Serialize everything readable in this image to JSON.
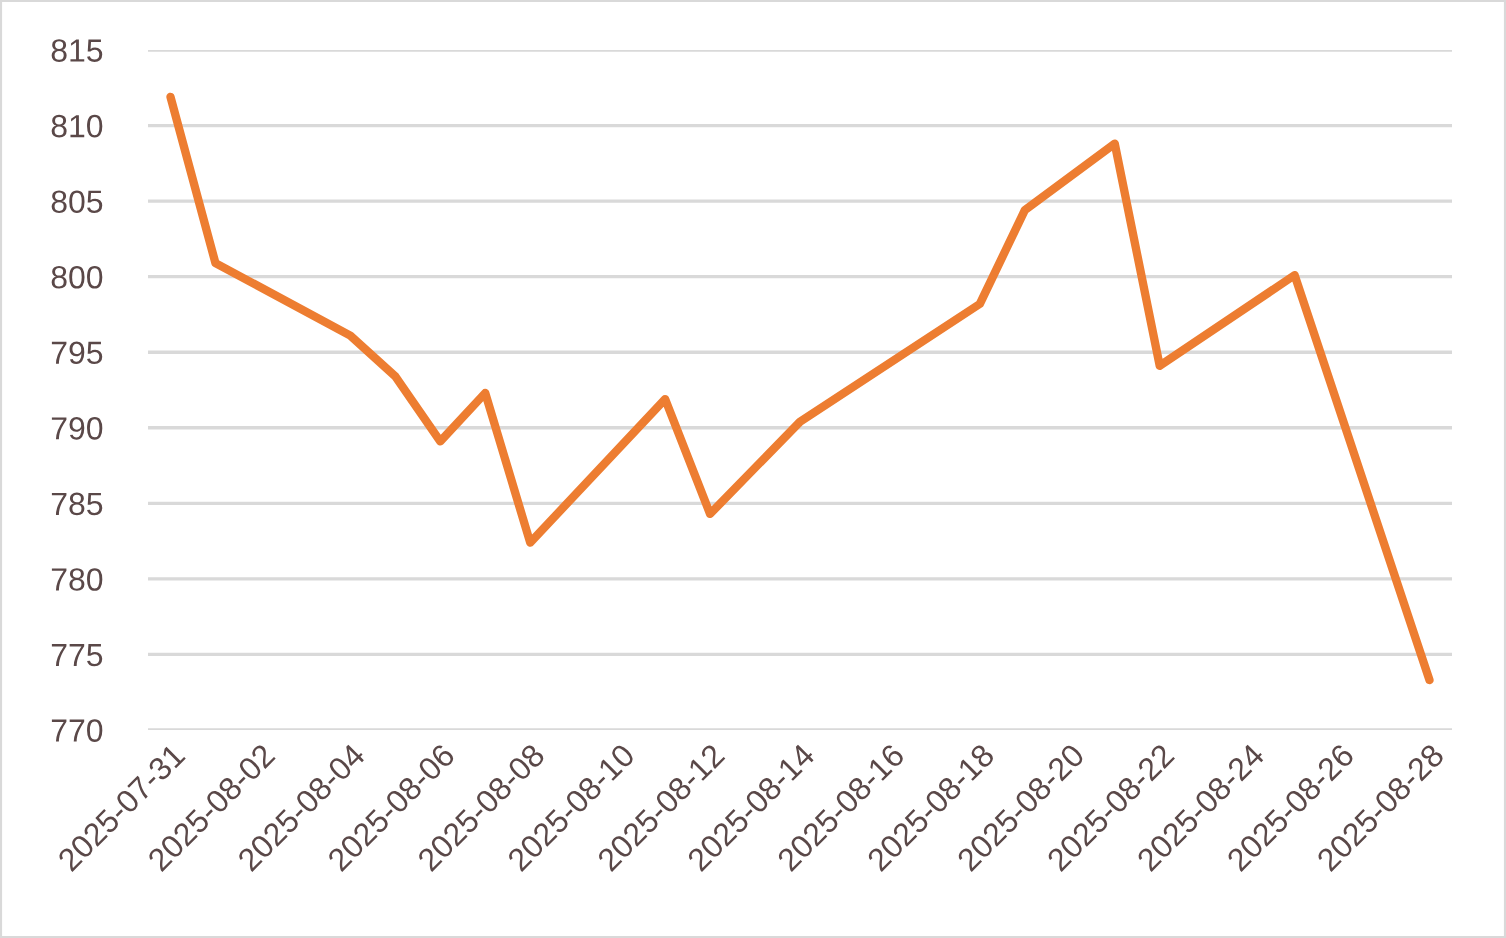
{
  "chart_data": {
    "type": "line",
    "x": [
      "2025-07-31",
      "2025-08-01",
      "2025-08-04",
      "2025-08-05",
      "2025-08-06",
      "2025-08-07",
      "2025-08-08",
      "2025-08-11",
      "2025-08-12",
      "2025-08-14",
      "2025-08-18",
      "2025-08-19",
      "2025-08-21",
      "2025-08-22",
      "2025-08-25",
      "2025-08-28"
    ],
    "series": [
      {
        "color": "#ed7d31",
        "values": [
          811.9,
          800.9,
          796.1,
          793.4,
          789.1,
          792.3,
          782.4,
          791.9,
          784.3,
          790.4,
          798.2,
          804.4,
          808.8,
          794.1,
          800.1,
          773.3
        ]
      }
    ],
    "xlim": [
      "2025-07-30T12:00",
      "2025-08-28T12:00"
    ],
    "xticks": [
      "2025-07-31",
      "2025-08-02",
      "2025-08-04",
      "2025-08-06",
      "2025-08-08",
      "2025-08-10",
      "2025-08-12",
      "2025-08-14",
      "2025-08-16",
      "2025-08-18",
      "2025-08-20",
      "2025-08-22",
      "2025-08-24",
      "2025-08-26",
      "2025-08-28"
    ],
    "ylim": [
      770,
      815
    ],
    "yticks": [
      770,
      775,
      780,
      785,
      790,
      795,
      800,
      805,
      810,
      815
    ],
    "grid": "y",
    "marker": "none",
    "line_style": "solid"
  }
}
